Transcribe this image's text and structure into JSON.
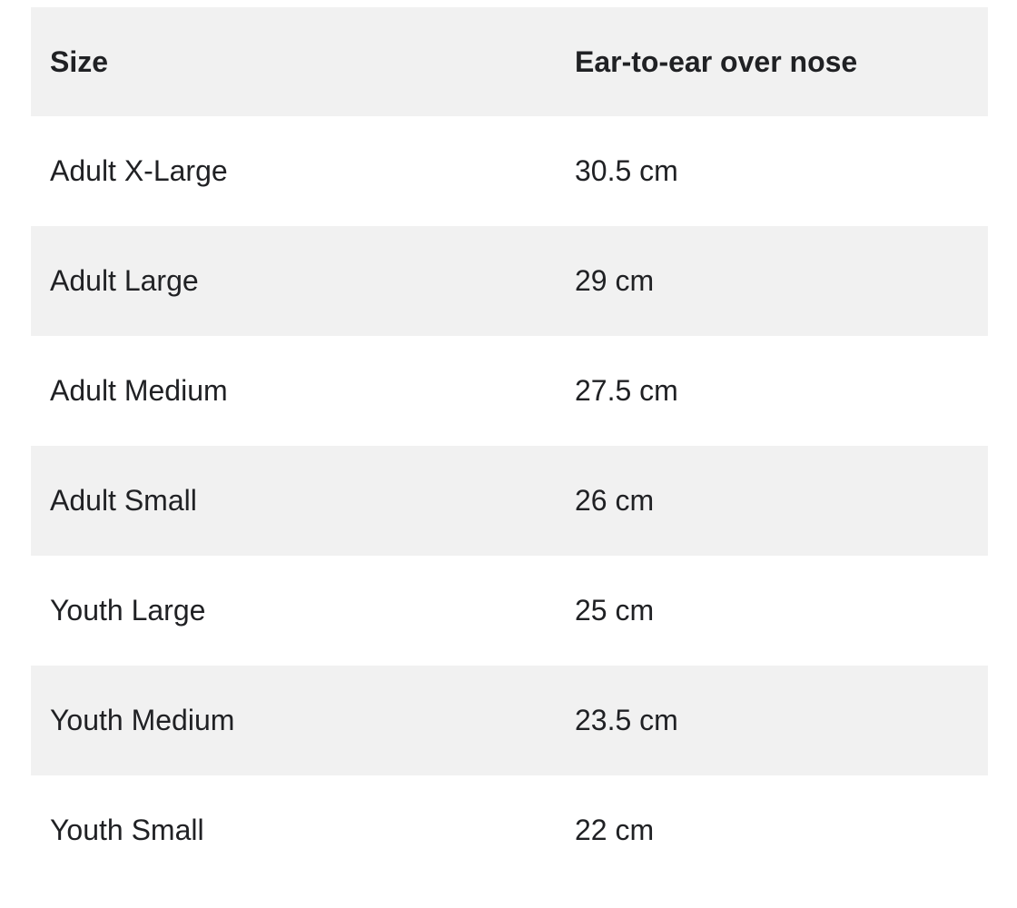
{
  "table": {
    "columns": [
      {
        "key": "size",
        "label": "Size"
      },
      {
        "key": "measurement",
        "label": "Ear-to-ear over nose"
      }
    ],
    "rows": [
      {
        "size": "Adult X-Large",
        "measurement": "30.5 cm"
      },
      {
        "size": "Adult Large",
        "measurement": "29 cm"
      },
      {
        "size": "Adult Medium",
        "measurement": "27.5 cm"
      },
      {
        "size": "Adult Small",
        "measurement": "26 cm"
      },
      {
        "size": "Youth Large",
        "measurement": "25 cm"
      },
      {
        "size": "Youth Medium",
        "measurement": "23.5 cm"
      },
      {
        "size": "Youth Small",
        "measurement": "22 cm"
      }
    ]
  },
  "colors": {
    "stripe_background": "#f1f1f1",
    "row_background": "#ffffff",
    "text": "#202124"
  },
  "chart_data": {
    "type": "table",
    "columns": [
      "Size",
      "Ear-to-ear over nose"
    ],
    "rows": [
      [
        "Adult X-Large",
        "30.5 cm"
      ],
      [
        "Adult Large",
        "29 cm"
      ],
      [
        "Adult Medium",
        "27.5 cm"
      ],
      [
        "Adult Small",
        "26 cm"
      ],
      [
        "Youth Large",
        "25 cm"
      ],
      [
        "Youth Medium",
        "23.5 cm"
      ],
      [
        "Youth Small",
        "22 cm"
      ]
    ],
    "sizes": [
      "Adult X-Large",
      "Adult Large",
      "Adult Medium",
      "Adult Small",
      "Youth Large",
      "Youth Medium",
      "Youth Small"
    ],
    "ear_to_ear_over_nose_cm": [
      30.5,
      29,
      27.5,
      26,
      25,
      23.5,
      22
    ],
    "unit": "cm",
    "layout": "two-column striped table; gray bold header row; body rows alternate white then gray"
  }
}
